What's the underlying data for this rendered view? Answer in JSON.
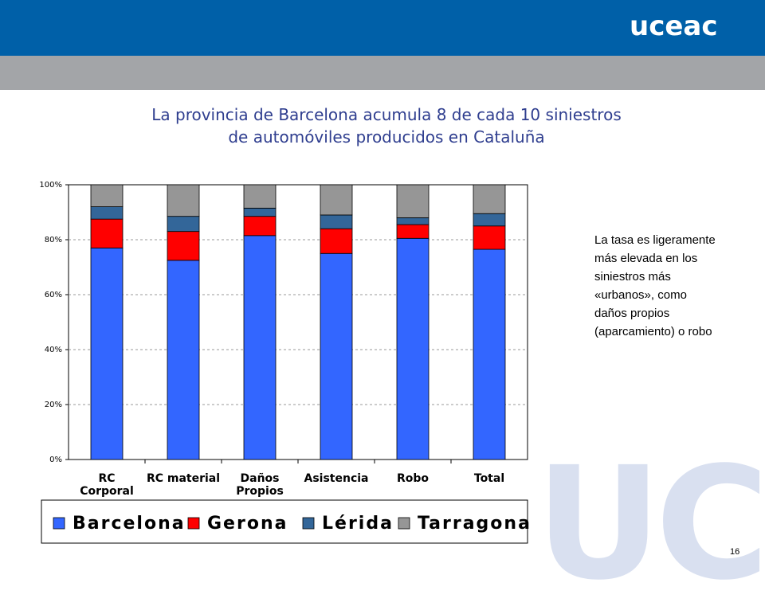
{
  "header": {
    "logo_text": "uceac",
    "watermark_text": "UC"
  },
  "slide": {
    "title_line1": "La provincia de Barcelona acumula 8 de cada 10 siniestros",
    "title_line2": "de automóviles producidos en Cataluña",
    "note": "La tasa es ligeramente más elevada en los siniestros más «urbanos», como daños propios (aparcamiento) o robo",
    "page_number": "16"
  },
  "colors": {
    "header_blue": "#0060a8",
    "header_grey": "#a3a5a8",
    "title": "#2f3e8f",
    "watermark": "#d9e0f0"
  },
  "chart_data": {
    "type": "bar",
    "stacked": true,
    "categories": [
      [
        "RC",
        "Corporal"
      ],
      [
        "RC material"
      ],
      [
        "Daños",
        "Propios"
      ],
      [
        "Asistencia"
      ],
      [
        "Robo"
      ],
      [
        "Total"
      ]
    ],
    "series": [
      {
        "name": "Barcelona",
        "color": "#3366ff",
        "values": [
          77,
          72.5,
          81.5,
          75,
          80.5,
          76.5
        ]
      },
      {
        "name": "Gerona",
        "color": "#ff0000",
        "values": [
          10.5,
          10.5,
          7,
          9,
          5,
          8.5
        ]
      },
      {
        "name": "Lérida",
        "color": "#336699",
        "values": [
          4.5,
          5.5,
          3,
          5,
          2.5,
          4.5
        ]
      },
      {
        "name": "Tarragona",
        "color": "#969696",
        "values": [
          8,
          11.5,
          8.5,
          11,
          12,
          10.5
        ]
      }
    ],
    "y_ticks": [
      "0%",
      "20%",
      "40%",
      "60%",
      "80%",
      "100%"
    ],
    "ylim": [
      0,
      100
    ],
    "grid": true,
    "legend_position": "bottom"
  }
}
